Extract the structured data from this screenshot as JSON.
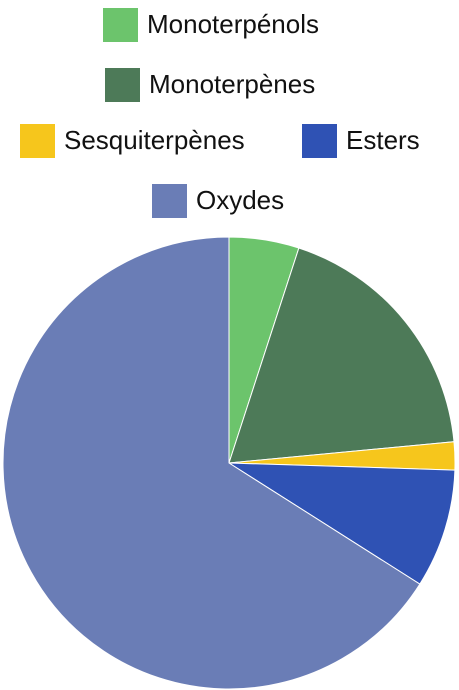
{
  "chart_data": {
    "type": "pie",
    "categories": [
      "Monoterpénols",
      "Monoterpènes",
      "Sesquiterpènes",
      "Esters",
      "Oxydes"
    ],
    "values": [
      5,
      18.5,
      2,
      8.5,
      66
    ],
    "colors": [
      "#6cc46c",
      "#4d7a58",
      "#f6c61c",
      "#2f52b4",
      "#6a7db6"
    ]
  }
}
